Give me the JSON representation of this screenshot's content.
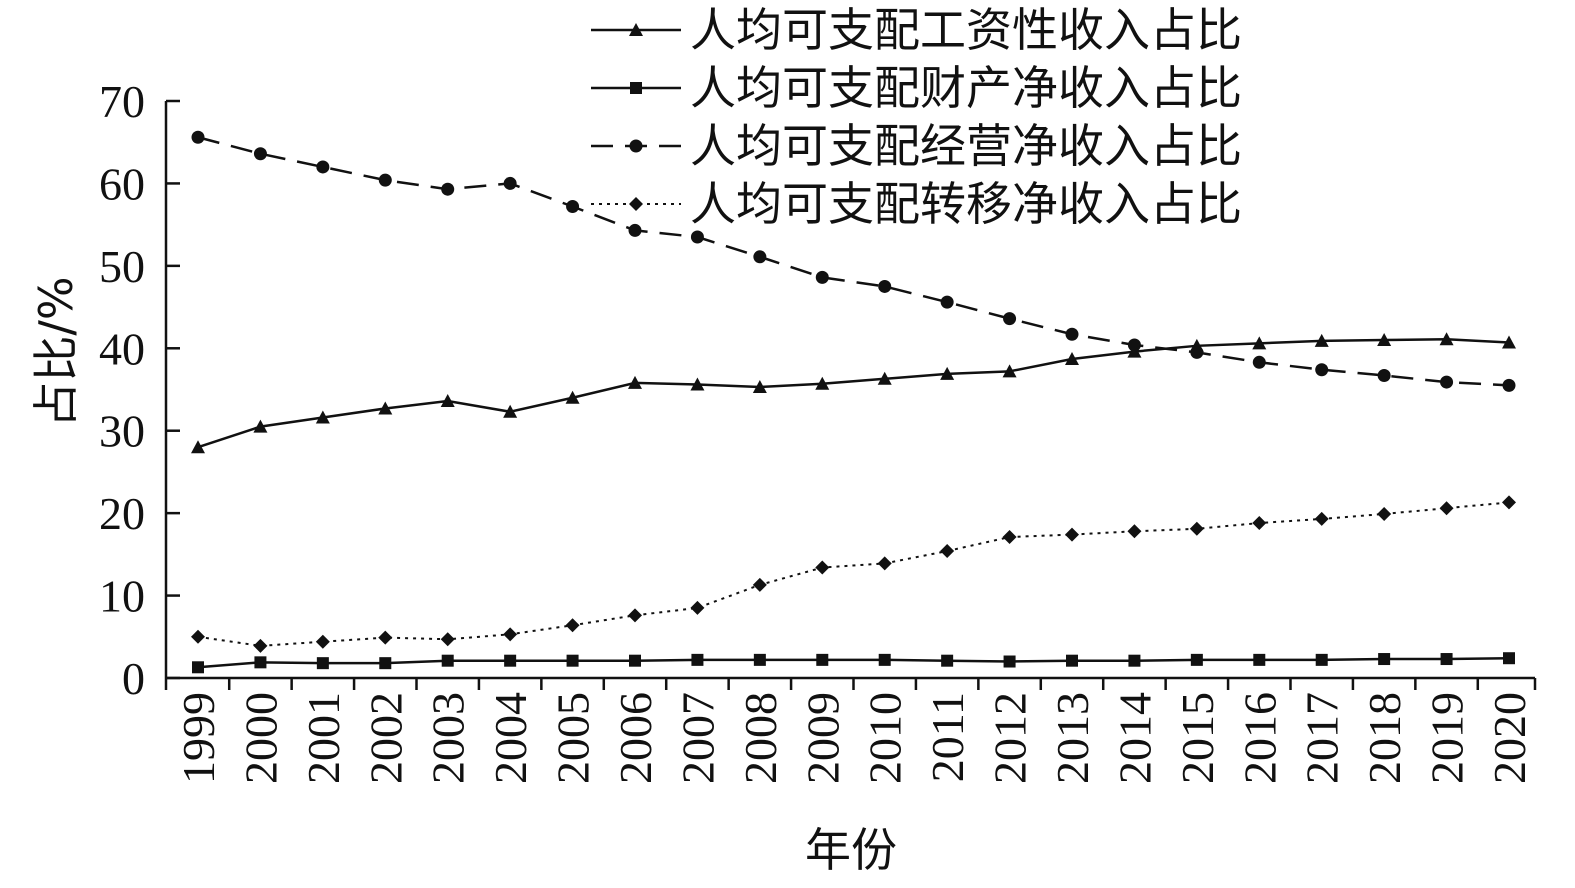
{
  "chart_data": {
    "type": "line",
    "xlabel": "年份",
    "ylabel": "占比/%",
    "ylim": [
      0,
      70
    ],
    "yticks": [
      "0",
      "10",
      "20",
      "30",
      "40",
      "50",
      "60",
      "70"
    ],
    "categories": [
      "1999",
      "2000",
      "2001",
      "2002",
      "2003",
      "2004",
      "2005",
      "2006",
      "2007",
      "2008",
      "2009",
      "2010",
      "2011",
      "2012",
      "2013",
      "2014",
      "2015",
      "2016",
      "2017",
      "2018",
      "2019",
      "2020"
    ],
    "legend_position": "top",
    "grid": false,
    "series": [
      {
        "name": "人均可支配工资性收入占比",
        "marker": "triangle",
        "line": "solid",
        "color": "#111111",
        "values": [
          28.0,
          30.5,
          31.6,
          32.7,
          33.6,
          32.3,
          34.0,
          35.8,
          35.6,
          35.3,
          35.7,
          36.3,
          36.9,
          37.2,
          38.7,
          39.6,
          40.3,
          40.6,
          40.9,
          41.0,
          41.1,
          40.7
        ]
      },
      {
        "name": "人均可支配财产净收入占比",
        "marker": "square",
        "line": "solid",
        "color": "#111111",
        "values": [
          1.3,
          1.9,
          1.8,
          1.8,
          2.1,
          2.1,
          2.1,
          2.1,
          2.2,
          2.2,
          2.2,
          2.2,
          2.1,
          2.0,
          2.1,
          2.1,
          2.2,
          2.2,
          2.2,
          2.3,
          2.3,
          2.4
        ]
      },
      {
        "name": "人均可支配经营净收入占比",
        "marker": "circle",
        "line": "dashed",
        "color": "#111111",
        "values": [
          65.6,
          63.6,
          62.0,
          60.4,
          59.3,
          60.0,
          57.2,
          54.3,
          53.5,
          51.1,
          48.6,
          47.5,
          45.6,
          43.6,
          41.7,
          40.4,
          39.5,
          38.3,
          37.4,
          36.7,
          35.9,
          35.5
        ]
      },
      {
        "name": "人均可支配转移净收入占比",
        "marker": "diamond",
        "line": "dotted",
        "color": "#111111",
        "values": [
          5.0,
          3.9,
          4.4,
          4.9,
          4.7,
          5.3,
          6.4,
          7.6,
          8.5,
          11.3,
          13.4,
          13.9,
          15.4,
          17.1,
          17.4,
          17.8,
          18.1,
          18.8,
          19.3,
          19.9,
          20.6,
          21.3
        ]
      }
    ]
  }
}
